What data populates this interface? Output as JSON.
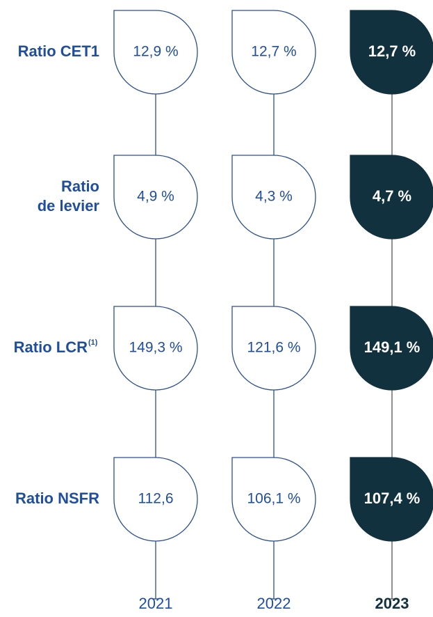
{
  "rows": [
    {
      "label": [
        "Ratio CET1"
      ],
      "values": [
        "12,9 %",
        "12,7 %",
        "12,7 %"
      ]
    },
    {
      "label": [
        "Ratio",
        "de levier"
      ],
      "values": [
        "4,9 %",
        "4,3 %",
        "4,7 %"
      ]
    },
    {
      "label": [
        "Ratio LCR"
      ],
      "note": "(1)",
      "values": [
        "149,3 %",
        "121,6 %",
        "149,1 %"
      ]
    },
    {
      "label": [
        "Ratio NSFR"
      ],
      "values": [
        "112,6",
        "106,1 %",
        "107,4 %"
      ]
    }
  ],
  "years": [
    "2021",
    "2022",
    "2023"
  ]
}
